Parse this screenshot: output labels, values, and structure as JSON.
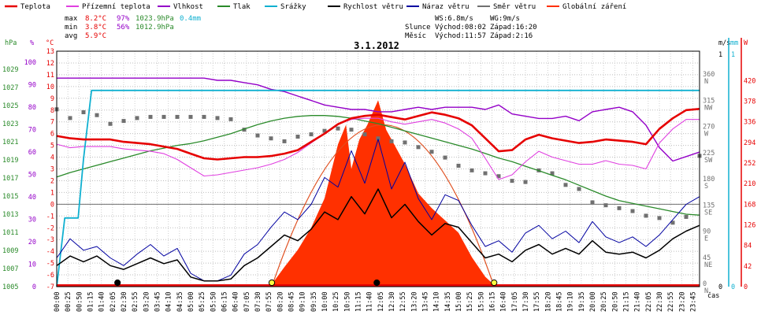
{
  "chart_data": {
    "type": "line",
    "title": "3.1.2012",
    "legend": [
      {
        "name": "Teplota",
        "color": "#e60000"
      },
      {
        "name": "Přízemní teplota",
        "color": "#e040e0"
      },
      {
        "name": "Vlhkost",
        "color": "#9400c8"
      },
      {
        "name": "Tlak",
        "color": "#2a8a2a"
      },
      {
        "name": "Srážky",
        "color": "#10b0d0"
      },
      {
        "name": "Rychlost větru",
        "color": "#000000"
      },
      {
        "name": "Náraz větru",
        "color": "#0000a0"
      },
      {
        "name": "Směr větru",
        "color": "#707070"
      },
      {
        "name": "Globální záření",
        "color": "#ff3000"
      }
    ],
    "stats": {
      "max": {
        "label": "max",
        "temp": "8.2°C",
        "hum": "97%",
        "press": "1023.9hPa",
        "rain": "0.4mm"
      },
      "min": {
        "label": "min",
        "temp": "3.8°C",
        "hum": "56%",
        "press": "1012.9hPa"
      },
      "avg": {
        "label": "avg",
        "temp": "5.9°C"
      }
    },
    "wind_info": {
      "ws": "WS:6.8m/s",
      "wg": "WG:9m/s"
    },
    "sun": {
      "label": "Slunce",
      "rise": "Východ:08:02",
      "set": "Západ:16:20"
    },
    "moon": {
      "label": "Měsíc",
      "rise": "Východ:11:57",
      "set": "Západ:2:16"
    },
    "axes": {
      "hpa_label": "hPa",
      "pct_label": "%",
      "temp_label": "°C",
      "ms_label": "m/s",
      "mm_label": "mm",
      "w_label": "W",
      "x_label": "čas",
      "hpa_ticks": [
        "1005",
        "1007",
        "1009",
        "1011",
        "1013",
        "1015",
        "1017",
        "1019",
        "1021",
        "1023",
        "1025",
        "1027",
        "1029"
      ],
      "pct_ticks": [
        "0",
        "10",
        "20",
        "30",
        "40",
        "50",
        "60",
        "70",
        "80",
        "90",
        "100"
      ],
      "temp_ticks": [
        "-7",
        "-6",
        "-5",
        "-4",
        "-3",
        "-2",
        "-1",
        "0",
        "1",
        "2",
        "3",
        "4",
        "5",
        "6",
        "7",
        "8",
        "9",
        "10",
        "11",
        "12",
        "13"
      ],
      "dir_ticks": [
        {
          "deg": "0",
          "dir": "N"
        },
        {
          "deg": "45",
          "dir": "NE"
        },
        {
          "deg": "90",
          "dir": "E"
        },
        {
          "deg": "135",
          "dir": "SE"
        },
        {
          "deg": "180",
          "dir": "S"
        },
        {
          "deg": "225",
          "dir": "SW"
        },
        {
          "deg": "270",
          "dir": "W"
        },
        {
          "deg": "315",
          "dir": "NW"
        },
        {
          "deg": "360",
          "dir": "N"
        }
      ],
      "ms_ticks": [
        "0",
        "1"
      ],
      "mm_ticks": [
        "0",
        "1"
      ],
      "w_ticks": [
        "0",
        "42",
        "84",
        "126",
        "168",
        "210",
        "252",
        "294",
        "336",
        "378",
        "420"
      ],
      "time_ticks": [
        "00:00",
        "00:25",
        "00:50",
        "01:15",
        "01:40",
        "02:05",
        "02:30",
        "02:55",
        "03:20",
        "03:45",
        "04:10",
        "04:35",
        "05:00",
        "05:25",
        "05:50",
        "06:15",
        "06:40",
        "07:05",
        "07:30",
        "07:55",
        "08:20",
        "08:45",
        "09:10",
        "09:35",
        "10:00",
        "10:25",
        "10:50",
        "11:15",
        "11:40",
        "12:05",
        "12:30",
        "12:55",
        "13:20",
        "13:45",
        "14:10",
        "14:35",
        "15:00",
        "15:25",
        "15:50",
        "16:15",
        "16:40",
        "17:05",
        "17:30",
        "17:55",
        "18:20",
        "18:45",
        "19:10",
        "19:35",
        "20:00",
        "20:25",
        "20:50",
        "21:15",
        "21:40",
        "22:05",
        "22:30",
        "22:55",
        "23:20",
        "23:45"
      ]
    },
    "xlim": [
      0,
      24
    ],
    "temp_ylim": [
      -7,
      13
    ],
    "series": [
      {
        "name": "Teplota",
        "unit": "°C",
        "x": [
          0,
          0.5,
          1,
          1.5,
          2,
          2.5,
          3,
          3.5,
          4,
          4.5,
          5,
          5.5,
          6,
          6.5,
          7,
          7.5,
          8,
          8.5,
          9,
          9.5,
          10,
          10.5,
          11,
          11.5,
          12,
          12.5,
          13,
          13.5,
          14,
          14.5,
          15,
          15.5,
          16,
          16.5,
          17,
          17.5,
          18,
          18.5,
          19,
          19.5,
          20,
          20.5,
          21,
          21.5,
          22,
          22.5,
          23,
          23.5,
          24
        ],
        "y": [
          5.8,
          5.6,
          5.5,
          5.5,
          5.5,
          5.3,
          5.2,
          5.1,
          4.9,
          4.7,
          4.3,
          3.9,
          3.8,
          3.9,
          4.0,
          4.0,
          4.1,
          4.3,
          4.6,
          5.3,
          6.0,
          6.8,
          7.3,
          7.5,
          7.6,
          7.4,
          7.2,
          7.5,
          7.8,
          7.6,
          7.3,
          6.7,
          5.6,
          4.5,
          4.6,
          5.5,
          5.9,
          5.6,
          5.4,
          5.2,
          5.3,
          5.5,
          5.4,
          5.3,
          5.1,
          6.4,
          7.3,
          8.0,
          8.1
        ]
      },
      {
        "name": "Přízemní teplota",
        "unit": "°C",
        "x": [
          0,
          0.5,
          1,
          1.5,
          2,
          2.5,
          3,
          3.5,
          4,
          4.5,
          5,
          5.5,
          6,
          6.5,
          7,
          7.5,
          8,
          8.5,
          9,
          9.5,
          10,
          10.5,
          11,
          11.5,
          12,
          12.5,
          13,
          13.5,
          14,
          14.5,
          15,
          15.5,
          16,
          16.5,
          17,
          17.5,
          18,
          18.5,
          19,
          19.5,
          20,
          20.5,
          21,
          21.5,
          22,
          22.5,
          23,
          23.5,
          24
        ],
        "y": [
          5.1,
          4.8,
          4.9,
          4.9,
          4.9,
          4.7,
          4.6,
          4.5,
          4.3,
          3.8,
          3.1,
          2.4,
          2.5,
          2.7,
          2.9,
          3.1,
          3.4,
          3.8,
          4.4,
          5.2,
          6.0,
          6.8,
          7.2,
          7.3,
          7.3,
          7.0,
          6.8,
          7.0,
          7.2,
          6.9,
          6.4,
          5.6,
          3.9,
          2.1,
          2.5,
          3.6,
          4.5,
          4.0,
          3.7,
          3.4,
          3.4,
          3.7,
          3.4,
          3.3,
          3.0,
          5.2,
          6.4,
          7.2,
          7.2
        ]
      },
      {
        "name": "Vlhkost",
        "unit": "%",
        "x": [
          0,
          0.5,
          1,
          1.5,
          2,
          2.5,
          3,
          3.5,
          4,
          4.5,
          5,
          5.5,
          6,
          6.5,
          7,
          7.5,
          8,
          8.5,
          9,
          9.5,
          10,
          10.5,
          11,
          11.5,
          12,
          12.5,
          13,
          13.5,
          14,
          14.5,
          15,
          15.5,
          16,
          16.5,
          17,
          17.5,
          18,
          18.5,
          19,
          19.5,
          20,
          20.5,
          21,
          21.5,
          22,
          22.5,
          23,
          23.5,
          24
        ],
        "y": [
          93,
          93,
          93,
          93,
          93,
          93,
          93,
          93,
          93,
          93,
          93,
          93,
          92,
          92,
          91,
          90,
          88,
          87,
          85,
          83,
          81,
          80,
          79,
          79,
          78,
          78,
          79,
          80,
          79,
          80,
          80,
          80,
          79,
          81,
          77,
          76,
          75,
          75,
          76,
          74,
          78,
          79,
          80,
          78,
          72,
          62,
          56,
          58,
          60
        ]
      },
      {
        "name": "Tlak",
        "unit": "hPa",
        "x": [
          0,
          0.5,
          1,
          1.5,
          2,
          2.5,
          3,
          3.5,
          4,
          4.5,
          5,
          5.5,
          6,
          6.5,
          7,
          7.5,
          8,
          8.5,
          9,
          9.5,
          10,
          10.5,
          11,
          11.5,
          12,
          12.5,
          13,
          13.5,
          14,
          14.5,
          15,
          15.5,
          16,
          16.5,
          17,
          17.5,
          18,
          18.5,
          19,
          19.5,
          20,
          20.5,
          21,
          21.5,
          22,
          22.5,
          23,
          23.5,
          24
        ],
        "y": [
          1017.1,
          1017.6,
          1018.0,
          1018.4,
          1018.8,
          1019.2,
          1019.6,
          1020.0,
          1020.3,
          1020.6,
          1020.8,
          1021.1,
          1021.5,
          1021.9,
          1022.4,
          1022.9,
          1023.3,
          1023.6,
          1023.8,
          1023.9,
          1023.9,
          1023.8,
          1023.6,
          1023.3,
          1023.0,
          1022.6,
          1022.2,
          1021.8,
          1021.4,
          1021.0,
          1020.6,
          1020.2,
          1019.7,
          1019.2,
          1018.8,
          1018.3,
          1017.8,
          1017.3,
          1016.8,
          1016.2,
          1015.6,
          1015.0,
          1014.5,
          1014.2,
          1013.9,
          1013.6,
          1013.3,
          1013.0,
          1012.9
        ]
      },
      {
        "name": "Srážky",
        "unit": "mm",
        "x": [
          0,
          0.3,
          0.5,
          0.8,
          1.0,
          1.3,
          1.5,
          3,
          6,
          9,
          12,
          15,
          18,
          21,
          24
        ],
        "y": [
          0,
          0.35,
          0.35,
          0.35,
          0.65,
          1.0,
          1.0,
          1.0,
          1.0,
          1.0,
          1.0,
          1.0,
          1.0,
          1.0,
          1.0
        ]
      },
      {
        "name": "Rychlost větru",
        "unit": "m/s",
        "x": [
          0,
          0.5,
          1,
          1.5,
          2,
          2.5,
          3,
          3.5,
          4,
          4.5,
          5,
          5.5,
          6,
          6.5,
          7,
          7.5,
          8,
          8.5,
          9,
          9.5,
          10,
          10.5,
          11,
          11.5,
          12,
          12.5,
          13,
          13.5,
          14,
          14.5,
          15,
          15.5,
          16,
          16.5,
          17,
          17.5,
          18,
          18.5,
          19,
          19.5,
          20,
          20.5,
          21,
          21.5,
          22,
          22.5,
          23,
          23.5,
          24
        ],
        "y": [
          0.8,
          1.3,
          1.0,
          1.3,
          0.8,
          0.6,
          0.9,
          1.2,
          0.9,
          1.1,
          0.2,
          0.0,
          0.0,
          0.1,
          0.8,
          1.2,
          1.8,
          2.4,
          2.1,
          2.7,
          3.6,
          3.2,
          4.4,
          3.5,
          4.8,
          3.3,
          4.0,
          3.1,
          2.4,
          3.0,
          2.8,
          2.0,
          1.2,
          1.4,
          1.0,
          1.6,
          1.9,
          1.4,
          1.7,
          1.4,
          2.1,
          1.5,
          1.4,
          1.5,
          1.2,
          1.6,
          2.2,
          2.6,
          2.9
        ]
      },
      {
        "name": "Náraz větru",
        "unit": "m/s",
        "x": [
          0,
          0.5,
          1,
          1.5,
          2,
          2.5,
          3,
          3.5,
          4,
          4.5,
          5,
          5.5,
          6,
          6.5,
          7,
          7.5,
          8,
          8.5,
          9,
          9.5,
          10,
          10.5,
          11,
          11.5,
          12,
          12.5,
          13,
          13.5,
          14,
          14.5,
          15,
          15.5,
          16,
          16.5,
          17,
          17.5,
          18,
          18.5,
          19,
          19.5,
          20,
          20.5,
          21,
          21.5,
          22,
          22.5,
          23,
          23.5,
          24
        ],
        "y": [
          1.2,
          2.2,
          1.6,
          1.8,
          1.2,
          0.8,
          1.4,
          1.9,
          1.3,
          1.7,
          0.4,
          0.0,
          0.0,
          0.3,
          1.4,
          1.9,
          2.8,
          3.6,
          3.2,
          4.0,
          5.4,
          4.9,
          6.8,
          5.1,
          7.4,
          4.8,
          6.2,
          4.3,
          3.2,
          4.5,
          4.2,
          2.9,
          1.8,
          2.1,
          1.5,
          2.5,
          2.9,
          2.2,
          2.6,
          2.0,
          3.1,
          2.3,
          2.0,
          2.3,
          1.8,
          2.4,
          3.2,
          4.0,
          4.4
        ]
      },
      {
        "name": "Směr větru",
        "unit": "°",
        "x": [
          0,
          0.5,
          1,
          1.5,
          2,
          2.5,
          3,
          3.5,
          4,
          4.5,
          5,
          5.5,
          6,
          6.5,
          7,
          7.5,
          8,
          8.5,
          9,
          9.5,
          10,
          10.5,
          11,
          11.5,
          12,
          12.5,
          13,
          13.5,
          14,
          14.5,
          15,
          15.5,
          16,
          16.5,
          17,
          17.5,
          18,
          18.5,
          19,
          19.5,
          20,
          20.5,
          21,
          21.5,
          22,
          22.5,
          23,
          23.5,
          24
        ],
        "y": [
          305,
          290,
          300,
          295,
          280,
          285,
          290,
          292,
          292,
          292,
          292,
          292,
          290,
          288,
          270,
          260,
          255,
          250,
          258,
          262,
          268,
          272,
          270,
          262,
          255,
          250,
          248,
          240,
          232,
          222,
          208,
          200,
          195,
          190,
          182,
          180,
          200,
          195,
          175,
          168,
          145,
          140,
          135,
          130,
          122,
          118,
          110,
          120,
          225
        ]
      },
      {
        "name": "Globální záření",
        "unit": "W",
        "x": [
          0,
          7.9,
          8.1,
          8.5,
          9.0,
          9.5,
          10.0,
          10.5,
          10.8,
          11.0,
          11.3,
          11.6,
          12.0,
          12.3,
          12.6,
          13.0,
          13.5,
          14.0,
          14.5,
          15.0,
          15.5,
          16.0,
          16.3,
          16.4,
          24
        ],
        "y": [
          0,
          0,
          10,
          40,
          75,
          120,
          180,
          290,
          330,
          240,
          300,
          330,
          380,
          320,
          290,
          250,
          190,
          160,
          135,
          110,
          60,
          20,
          5,
          0,
          0
        ]
      }
    ],
    "markers": [
      {
        "name": "sunrise-marker",
        "x": 8.03,
        "color": "#ffff40"
      },
      {
        "name": "sunset-marker",
        "x": 16.33,
        "color": "#ffff40"
      },
      {
        "name": "moonset-marker",
        "x": 2.27,
        "color": "#000000"
      },
      {
        "name": "moonrise-marker",
        "x": 11.95,
        "color": "#000000"
      }
    ]
  }
}
